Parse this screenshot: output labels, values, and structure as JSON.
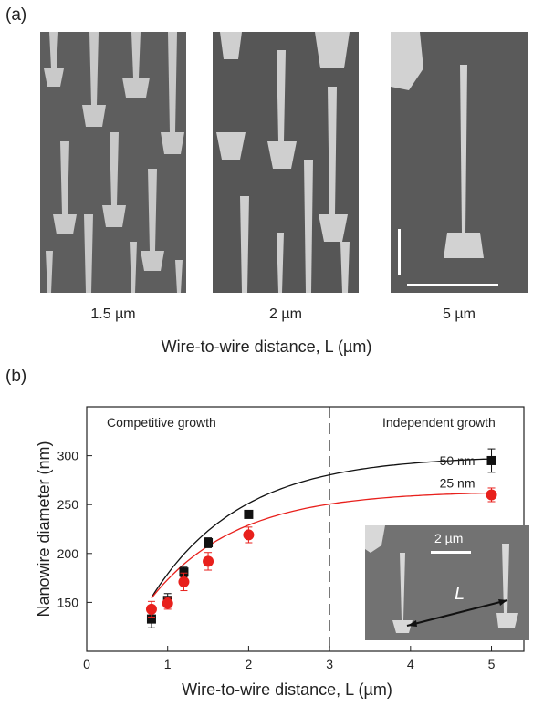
{
  "panel_a": {
    "label": "(a)",
    "images": [
      {
        "caption": "1.5 µm"
      },
      {
        "caption": "2 µm"
      },
      {
        "caption": "5 µm"
      }
    ],
    "xlabel": "Wire-to-wire distance, L (µm)"
  },
  "panel_b": {
    "label": "(b)",
    "region_left": "Competitive growth",
    "region_right": "Independent growth",
    "inset": {
      "scale_label": "2 µm",
      "distance_label": "L"
    }
  },
  "colors": {
    "series_black": "#111111",
    "series_red": "#e8201c"
  },
  "chart_data": {
    "type": "scatter",
    "title": "",
    "xlabel": "Wire-to-wire distance, L (µm)",
    "ylabel": "Nanowire diameter (nm)",
    "xlim": [
      0,
      5.4
    ],
    "ylim": [
      100,
      350
    ],
    "xticks": [
      0,
      1,
      2,
      3,
      4,
      5
    ],
    "yticks": [
      150,
      200,
      250,
      300
    ],
    "divider_x": 3,
    "series": [
      {
        "name": "50 nm",
        "color": "#111111",
        "marker": "square",
        "x": [
          0.8,
          1.0,
          1.2,
          1.5,
          2.0,
          5.0
        ],
        "y": [
          133,
          152,
          181,
          211,
          240,
          295
        ],
        "err": [
          9,
          7,
          5,
          5,
          3,
          12
        ],
        "fit": {
          "a": 300,
          "b": 300,
          "c": 1.1
        }
      },
      {
        "name": "25 nm",
        "color": "#e8201c",
        "marker": "circle",
        "x": [
          0.8,
          1.0,
          1.2,
          1.5,
          2.0,
          5.0
        ],
        "y": [
          143,
          149,
          171,
          192,
          219,
          260
        ],
        "err": [
          8,
          6,
          9,
          9,
          8,
          7
        ],
        "fit": {
          "a": 264,
          "b": 235,
          "c": 1.05
        }
      }
    ]
  }
}
